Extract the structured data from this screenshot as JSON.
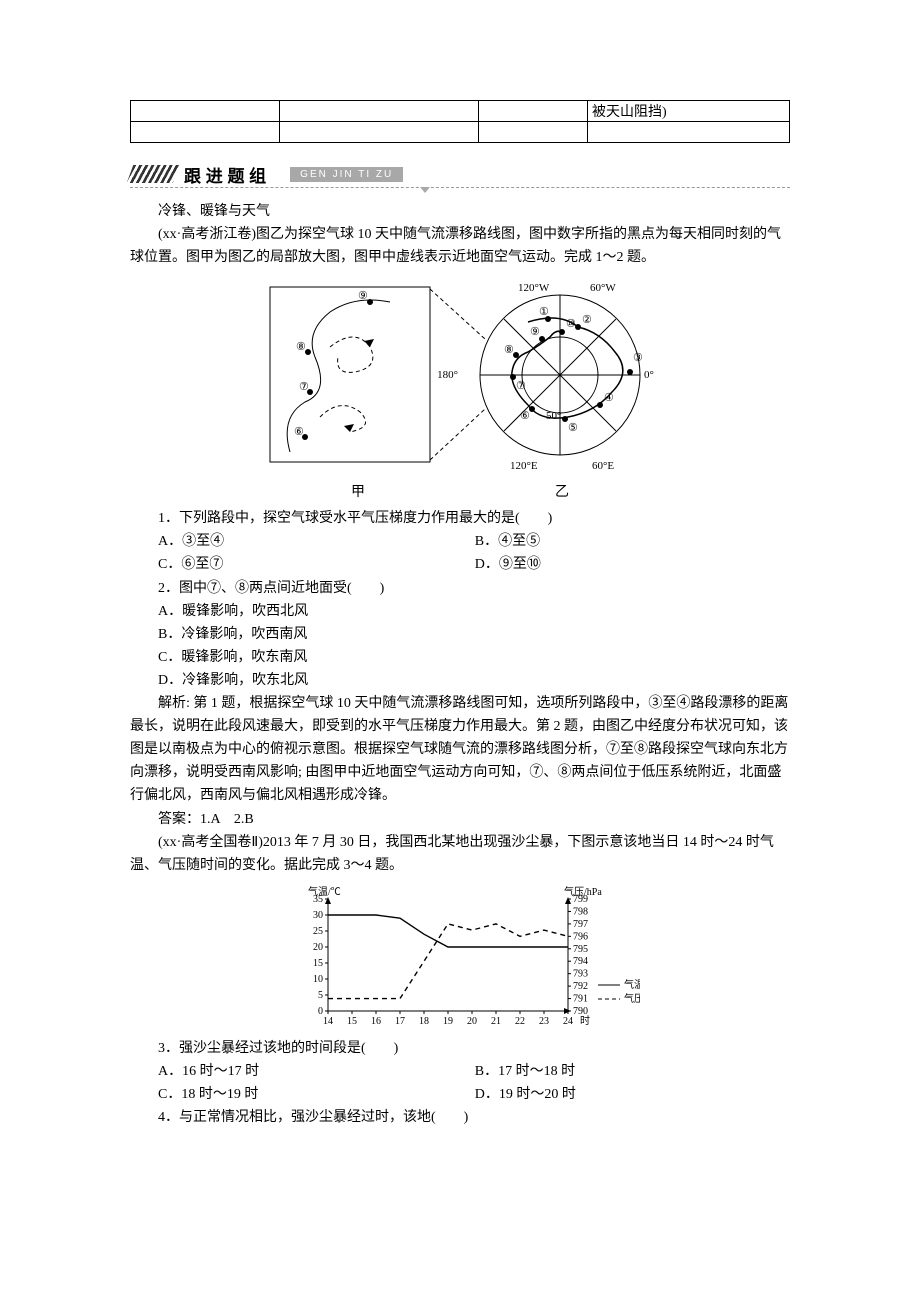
{
  "top_table": {
    "note": "被天山阻挡)"
  },
  "banner": {
    "title": "跟 进 题 组",
    "pinyin": "GEN JIN TI ZU"
  },
  "intro": {
    "heading": "冷锋、暖锋与天气",
    "p1": "(xx·高考浙江卷)图乙为探空气球 10 天中随气流漂移路线图，图中数字所指的黑点为每天相同时刻的气球位置。图甲为图乙的局部放大图，图甲中虚线表示近地面空气运动。完成 1～2 题。"
  },
  "figure1": {
    "labels": {
      "left": "甲",
      "right": "乙"
    },
    "right_longitudes": [
      "120°W",
      "60°W",
      "0°",
      "60°E",
      "120°E",
      "180°"
    ],
    "right_lat": "50°",
    "nodes": [
      "①",
      "②",
      "③",
      "④",
      "⑤",
      "⑥",
      "⑦",
      "⑧",
      "⑨",
      "⑩"
    ],
    "stroke": "#000000",
    "dash": "4 3"
  },
  "q1": {
    "stem": "1．下列路段中，探空气球受水平气压梯度力作用最大的是(　　)",
    "A": "A．③至④",
    "B": "B．④至⑤",
    "C": "C．⑥至⑦",
    "D": "D．⑨至⑩"
  },
  "q2": {
    "stem": "2．图中⑦、⑧两点间近地面受(　　)",
    "A": "A．暖锋影响，吹西北风",
    "B": "B．冷锋影响，吹西南风",
    "C": "C．暖锋影响，吹东南风",
    "D": "D．冷锋影响，吹东北风"
  },
  "analysis1": "解析: 第 1 题，根据探空气球 10 天中随气流漂移路线图可知，选项所列路段中，③至④路段漂移的距离最长，说明在此段风速最大，即受到的水平气压梯度力作用最大。第 2 题，由图乙中经度分布状况可知，该图是以南极点为中心的俯视示意图。根据探空气球随气流的漂移路线图分析，⑦至⑧路段探空气球向东北方向漂移，说明受西南风影响; 由图甲中近地面空气运动方向可知，⑦、⑧两点间位于低压系统附近，北面盛行偏北风，西南风与偏北风相遇形成冷锋。",
  "answer1": "答案：1.A　2.B",
  "intro2": "(xx·高考全国卷Ⅱ)2013 年 7 月 30 日，我国西北某地出现强沙尘暴，下图示意该地当日 14 时～24 时气温、气压随时间的变化。据此完成 3～4 题。",
  "chart": {
    "type": "dual-axis-line",
    "x_label_suffix": "时",
    "x_ticks": [
      14,
      15,
      16,
      17,
      18,
      19,
      20,
      21,
      22,
      23,
      24
    ],
    "y_left": {
      "label": "气温/℃",
      "min": 0,
      "max": 35,
      "step": 5
    },
    "y_right": {
      "label": "气压/hPa",
      "min": 790,
      "max": 799,
      "step": 1
    },
    "series": [
      {
        "name": "气温",
        "style": "solid",
        "color": "#000000",
        "points": [
          [
            14,
            30
          ],
          [
            15,
            30
          ],
          [
            16,
            30
          ],
          [
            17,
            29
          ],
          [
            18,
            24
          ],
          [
            19,
            20
          ],
          [
            20,
            20
          ],
          [
            21,
            20
          ],
          [
            22,
            20
          ],
          [
            23,
            20
          ],
          [
            24,
            20
          ]
        ]
      },
      {
        "name": "气压",
        "style": "dashed",
        "color": "#000000",
        "points": [
          [
            14,
            791
          ],
          [
            15,
            791
          ],
          [
            16,
            791
          ],
          [
            17,
            791
          ],
          [
            18,
            794
          ],
          [
            19,
            797
          ],
          [
            20,
            796.5
          ],
          [
            21,
            797
          ],
          [
            22,
            796
          ],
          [
            23,
            796.5
          ],
          [
            24,
            796
          ]
        ]
      }
    ],
    "legend": [
      {
        "label": "气温",
        "style": "solid"
      },
      {
        "label": "气压",
        "style": "dashed"
      }
    ],
    "axis_color": "#000000",
    "font_size": 10
  },
  "q3": {
    "stem": "3．强沙尘暴经过该地的时间段是(　　)",
    "A": "A．16 时～17 时",
    "B": "B．17 时～18 时",
    "C": "C．18 时～19 时",
    "D": "D．19 时～20 时"
  },
  "q4": {
    "stem": "4．与正常情况相比，强沙尘暴经过时，该地(　　)"
  }
}
